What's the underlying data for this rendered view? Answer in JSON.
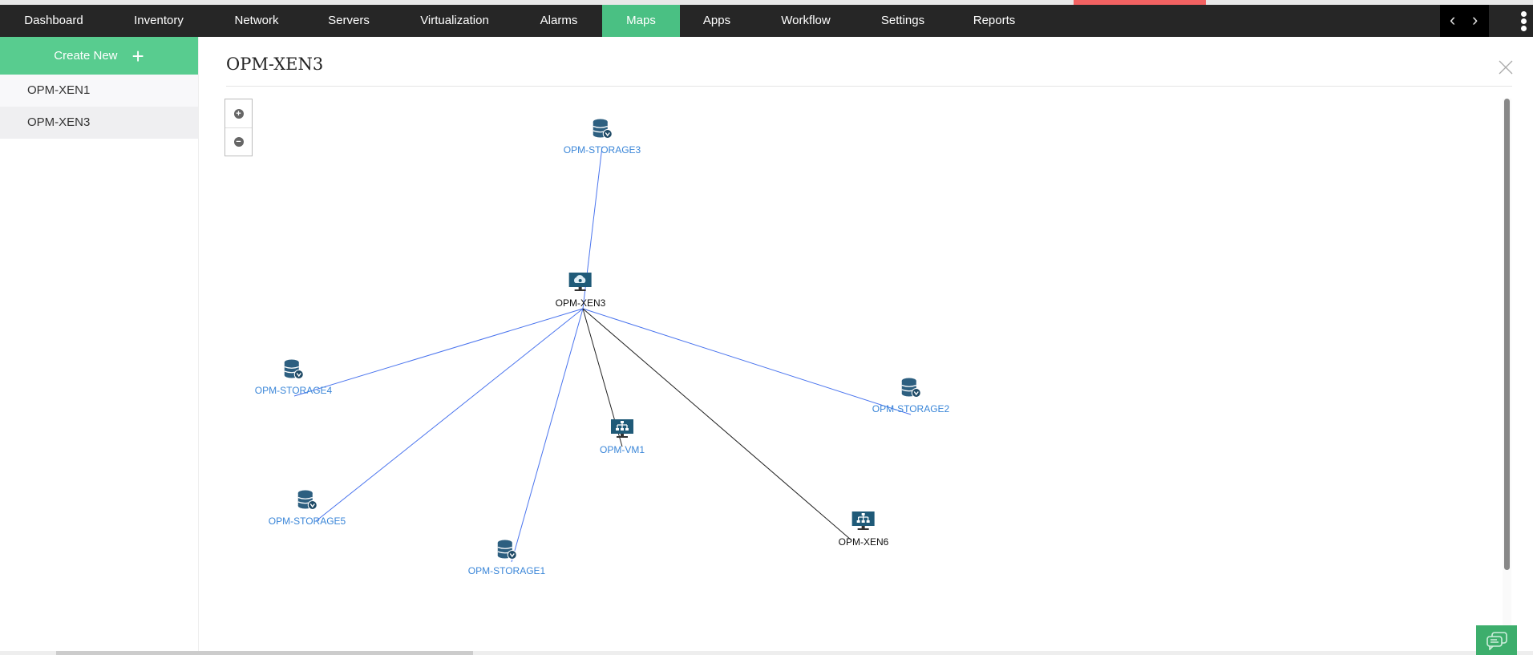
{
  "nav": {
    "items": [
      {
        "label": "Dashboard"
      },
      {
        "label": "Inventory"
      },
      {
        "label": "Network"
      },
      {
        "label": "Servers"
      },
      {
        "label": "Virtualization"
      },
      {
        "label": "Alarms"
      },
      {
        "label": "Maps",
        "active": true
      },
      {
        "label": "Apps"
      },
      {
        "label": "Workflow"
      },
      {
        "label": "Settings"
      },
      {
        "label": "Reports"
      }
    ],
    "prev": "‹",
    "next": "›",
    "active_color": "#4ac083"
  },
  "sidebar": {
    "create_new": "Create New",
    "create_icon": "+",
    "items": [
      {
        "label": "OPM-XEN1",
        "selected": false
      },
      {
        "label": "OPM-XEN3",
        "selected": true
      }
    ]
  },
  "main": {
    "title": "OPM-XEN3",
    "zoom_in": "+",
    "zoom_out": "−"
  },
  "map": {
    "nodes": [
      {
        "id": "xen3",
        "label": "OPM-XEN3",
        "icon": "xen-host-icon",
        "color": "black"
      },
      {
        "id": "s3",
        "label": "OPM-STORAGE3",
        "icon": "storage-icon",
        "color": "blue"
      },
      {
        "id": "s4",
        "label": "OPM-STORAGE4",
        "icon": "storage-icon",
        "color": "blue"
      },
      {
        "id": "s2",
        "label": "OPM-STORAGE2",
        "icon": "storage-icon",
        "color": "blue"
      },
      {
        "id": "vm1",
        "label": "OPM-VM1",
        "icon": "vm-icon",
        "color": "blue"
      },
      {
        "id": "s5",
        "label": "OPM-STORAGE5",
        "icon": "storage-icon",
        "color": "blue"
      },
      {
        "id": "s1",
        "label": "OPM-STORAGE1",
        "icon": "storage-icon",
        "color": "blue"
      },
      {
        "id": "xen6",
        "label": "OPM-XEN6",
        "icon": "vm-icon",
        "color": "black"
      }
    ],
    "links": [
      {
        "from": "xen3",
        "to": "s3",
        "color": "#4a74ee"
      },
      {
        "from": "xen3",
        "to": "s4",
        "color": "#4a74ee"
      },
      {
        "from": "xen3",
        "to": "s2",
        "color": "#4a74ee"
      },
      {
        "from": "xen3",
        "to": "s5",
        "color": "#4a74ee"
      },
      {
        "from": "xen3",
        "to": "s1",
        "color": "#4a74ee"
      },
      {
        "from": "xen3",
        "to": "vm1",
        "color": "#222222"
      },
      {
        "from": "xen3",
        "to": "xen6",
        "color": "#222222"
      }
    ]
  }
}
